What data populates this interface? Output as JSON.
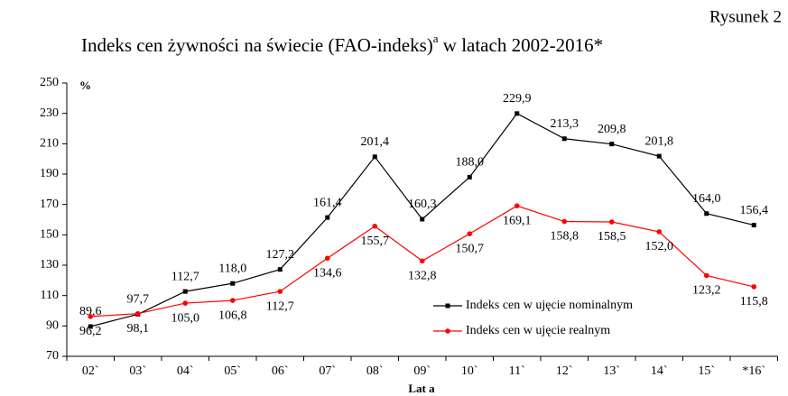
{
  "chart_data": {
    "type": "line",
    "figure_label": "Rysunek 2",
    "title": "Indeks cen żywności na świecie (FAO-indeks)",
    "title_superscript": "a",
    "title_suffix": " w latach 2002-2016*",
    "y_label": "%",
    "x_label": "Lat a",
    "categories": [
      "02`",
      "03`",
      "04`",
      "05`",
      "06`",
      "07`",
      "08`",
      "09`",
      "10`",
      "11`",
      "12`",
      "13`",
      "14`",
      "15`",
      "*16`"
    ],
    "series": [
      {
        "name": "Indeks cen w ujęcie nominalnym",
        "color": "#000000",
        "values": [
          89.6,
          97.7,
          112.7,
          118.0,
          127.2,
          161.4,
          201.4,
          160.3,
          188.0,
          229.9,
          213.3,
          209.8,
          201.8,
          164.0,
          156.4
        ],
        "value_labels": [
          "89,6",
          "97,7",
          "112,7",
          "118,0",
          "127,2",
          "161,4",
          "201,4",
          "160,3",
          "188,0",
          "229,9",
          "213,3",
          "209,8",
          "201,8",
          "164,0",
          "156,4"
        ]
      },
      {
        "name": "Indeks cen w ujęcie realnym",
        "color": "#ff0000",
        "values": [
          96.2,
          98.1,
          105.0,
          106.8,
          112.7,
          134.6,
          155.7,
          132.8,
          150.7,
          169.1,
          158.8,
          158.5,
          152.0,
          123.2,
          115.8
        ],
        "value_labels": [
          "96,2",
          "98,1",
          "105,0",
          "106,8",
          "112,7",
          "134,6",
          "155,7",
          "132,8",
          "150,7",
          "169,1",
          "158,8",
          "158,5",
          "152,0",
          "123,2",
          "115,8"
        ]
      }
    ],
    "ylim": [
      70,
      250
    ],
    "yticks": [
      70,
      90,
      110,
      130,
      150,
      170,
      190,
      210,
      230,
      250
    ],
    "grid": false
  }
}
